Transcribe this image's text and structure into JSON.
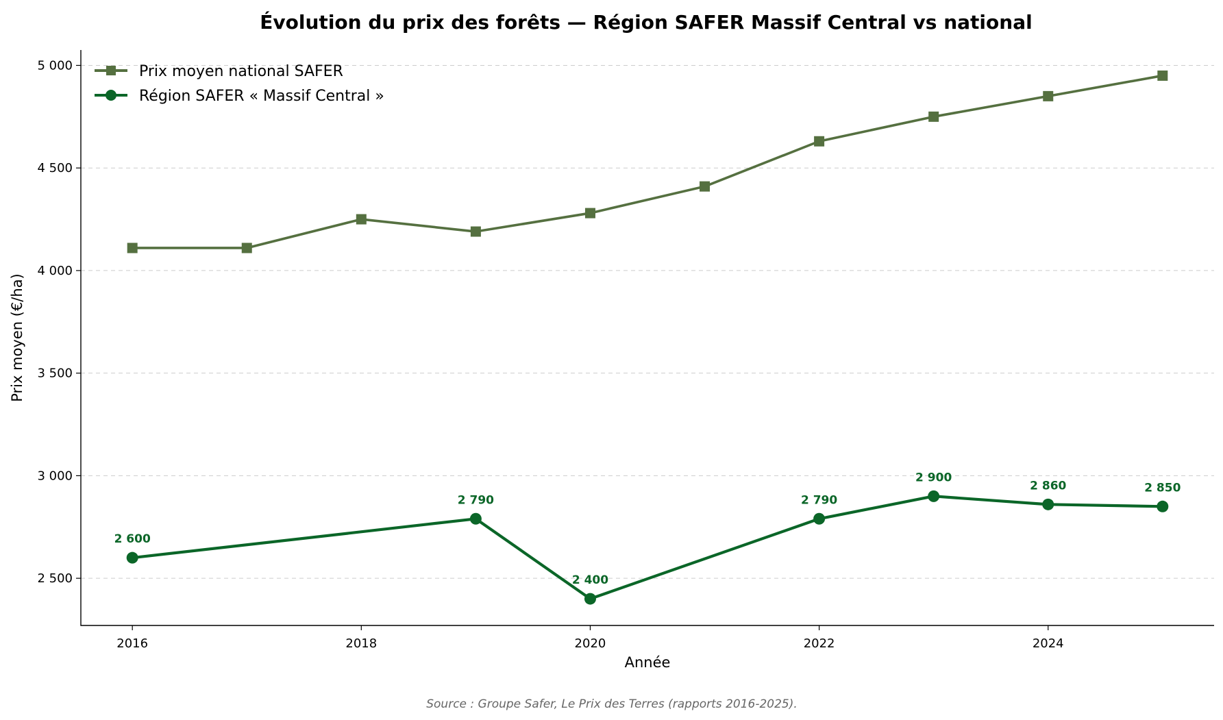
{
  "chart_data": {
    "type": "line",
    "title": "Évolution du prix des forêts — Région SAFER Massif Central vs national",
    "xlabel": "Année",
    "ylabel": "Prix moyen (€/ha)",
    "xlim": [
      2015.55,
      2025.45
    ],
    "ylim": [
      2270,
      5075
    ],
    "x_ticks": [
      2016,
      2018,
      2020,
      2022,
      2024
    ],
    "x_tick_labels": [
      "2016",
      "2018",
      "2020",
      "2022",
      "2024"
    ],
    "y_ticks": [
      2500,
      3000,
      3500,
      4000,
      4500,
      5000
    ],
    "y_tick_labels": [
      "2 500",
      "3 000",
      "3 500",
      "4 000",
      "4 500",
      "5 000"
    ],
    "grid": "horizontal dashed",
    "legend_position": "top-left",
    "series": [
      {
        "name": "Prix moyen national SAFER",
        "color": "#557040",
        "marker": "square",
        "x": [
          2016,
          2017,
          2018,
          2019,
          2020,
          2021,
          2022,
          2023,
          2024,
          2025
        ],
        "values": [
          4110,
          4110,
          4250,
          4190,
          4280,
          4410,
          4630,
          4750,
          4850,
          4950
        ]
      },
      {
        "name": "Région SAFER « Massif Central »",
        "color": "#0b6628",
        "marker": "circle",
        "x": [
          2016,
          2019,
          2020,
          2022,
          2023,
          2024,
          2025
        ],
        "values": [
          2600,
          2790,
          2400,
          2790,
          2900,
          2860,
          2850
        ],
        "data_labels": [
          "2 600",
          "2 790",
          "2 400",
          "2 790",
          "2 900",
          "2 860",
          "2 850"
        ]
      }
    ],
    "source": "Source : Groupe Safer, Le Prix des Terres (rapports 2016-2025)."
  }
}
